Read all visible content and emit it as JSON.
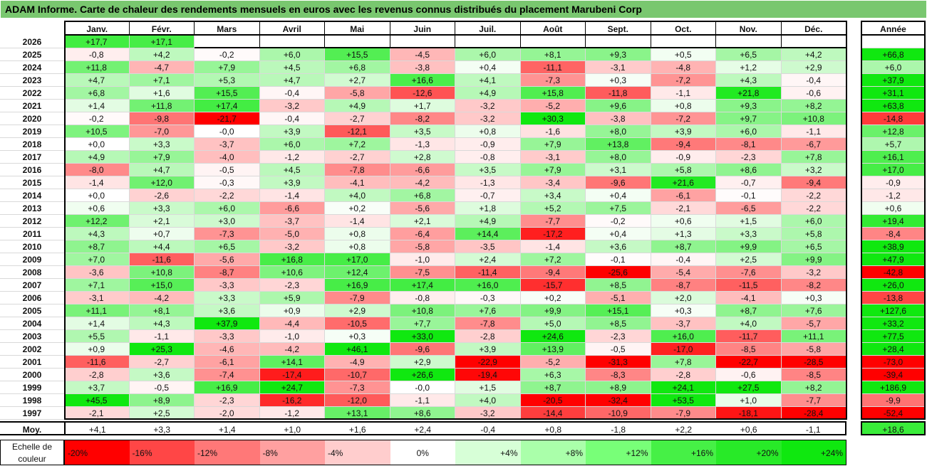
{
  "title": "ADAM Informe. Carte de chaleur des rendements mensuels en euros avec les revenus connus distribués du placement Marubeni Corp",
  "chart_data": {
    "type": "heatmap",
    "months": [
      "Janv.",
      "Févr.",
      "Mars",
      "Avril",
      "Mai",
      "Juin",
      "Juil.",
      "Août",
      "Sept.",
      "Oct.",
      "Nov.",
      "Déc."
    ],
    "year_label": "Année",
    "rows": [
      {
        "year": "2026",
        "values": [
          "+17,7",
          "+17,1",
          "",
          "",
          "",
          "",
          "",
          "",
          "",
          "",
          "",
          ""
        ],
        "annual": ""
      },
      {
        "year": "2025",
        "values": [
          "-0,8",
          "+4,2",
          "-0,2",
          "+6,0",
          "+15,5",
          "-4,5",
          "+6,0",
          "+8,1",
          "+9,3",
          "+0,5",
          "+6,5",
          "+4,2"
        ],
        "annual": "+66,8"
      },
      {
        "year": "2024",
        "values": [
          "+11,8",
          "-4,7",
          "+7,9",
          "+4,5",
          "+6,8",
          "-3,8",
          "+0,4",
          "-11,1",
          "-3,1",
          "-4,8",
          "+1,2",
          "+2,9"
        ],
        "annual": "+6,0"
      },
      {
        "year": "2023",
        "values": [
          "+4,7",
          "+7,1",
          "+5,3",
          "+4,7",
          "+2,7",
          "+16,6",
          "+4,1",
          "-7,3",
          "+0,3",
          "-7,2",
          "+4,3",
          "-0,4"
        ],
        "annual": "+37,9"
      },
      {
        "year": "2022",
        "values": [
          "+6,8",
          "+1,6",
          "+15,5",
          "-0,4",
          "-5,8",
          "-12,6",
          "+4,9",
          "+15,8",
          "-11,8",
          "-1,1",
          "+21,8",
          "-0,6"
        ],
        "annual": "+31,1"
      },
      {
        "year": "2021",
        "values": [
          "+1,4",
          "+11,8",
          "+17,4",
          "-3,2",
          "+4,9",
          "+1,7",
          "-3,2",
          "-5,2",
          "+9,6",
          "+0,8",
          "+9,3",
          "+8,2"
        ],
        "annual": "+63,8"
      },
      {
        "year": "2020",
        "values": [
          "-0,2",
          "-9,8",
          "-21,7",
          "-0,4",
          "-2,7",
          "-8,2",
          "-3,2",
          "+30,3",
          "-3,8",
          "-7,2",
          "+9,7",
          "+10,8"
        ],
        "annual": "-14,8"
      },
      {
        "year": "2019",
        "values": [
          "+10,5",
          "-7,0",
          "-0,0",
          "+3,9",
          "-12,1",
          "+3,5",
          "+0,8",
          "-1,6",
          "+8,0",
          "+3,9",
          "+6,0",
          "-1,1"
        ],
        "annual": "+12,8"
      },
      {
        "year": "2018",
        "values": [
          "+0,0",
          "+3,3",
          "-3,7",
          "+6,0",
          "+7,2",
          "-1,3",
          "-0,9",
          "+7,9",
          "+13,8",
          "-9,4",
          "-8,1",
          "-6,7"
        ],
        "annual": "+5,7"
      },
      {
        "year": "2017",
        "values": [
          "+4,9",
          "+7,9",
          "-4,0",
          "-1,2",
          "-2,7",
          "+2,8",
          "-0,8",
          "-3,1",
          "+8,0",
          "-0,9",
          "-2,3",
          "+7,8"
        ],
        "annual": "+16,1"
      },
      {
        "year": "2016",
        "values": [
          "-8,0",
          "+4,7",
          "-0,5",
          "+4,5",
          "-7,8",
          "-6,6",
          "+3,5",
          "+7,9",
          "+3,1",
          "+5,8",
          "+8,6",
          "+3,2"
        ],
        "annual": "+17,0"
      },
      {
        "year": "2015",
        "values": [
          "-1,4",
          "+12,0",
          "-0,3",
          "+3,9",
          "-4,1",
          "-4,2",
          "-1,3",
          "-3,4",
          "-9,6",
          "+21,6",
          "-0,7",
          "-9,4"
        ],
        "annual": "-0,9"
      },
      {
        "year": "2014",
        "values": [
          "+0,0",
          "-2,6",
          "-2,2",
          "-1,4",
          "+4,0",
          "+6,8",
          "-0,7",
          "+3,4",
          "+0,4",
          "-6,1",
          "-0,1",
          "-2,2"
        ],
        "annual": "-1,2"
      },
      {
        "year": "2013",
        "values": [
          "+0,6",
          "+3,3",
          "+6,0",
          "-6,6",
          "+0,2",
          "-5,6",
          "+1,8",
          "+5,2",
          "+7,5",
          "-2,1",
          "-6,5",
          "-2,2"
        ],
        "annual": "+0,6"
      },
      {
        "year": "2012",
        "values": [
          "+12,2",
          "+2,1",
          "+3,0",
          "-3,7",
          "-1,4",
          "+2,1",
          "+4,9",
          "-7,7",
          "-0,2",
          "+0,6",
          "+1,5",
          "+6,0"
        ],
        "annual": "+19,4"
      },
      {
        "year": "2011",
        "values": [
          "+4,3",
          "+0,7",
          "-7,3",
          "-5,0",
          "+0,8",
          "-6,4",
          "+14,4",
          "-17,2",
          "+0,4",
          "+1,3",
          "+3,3",
          "+5,8"
        ],
        "annual": "-8,4"
      },
      {
        "year": "2010",
        "values": [
          "+8,7",
          "+4,4",
          "+6,5",
          "-3,2",
          "+0,8",
          "-5,8",
          "-3,5",
          "-1,4",
          "+3,6",
          "+8,7",
          "+9,9",
          "+6,5"
        ],
        "annual": "+38,9"
      },
      {
        "year": "2009",
        "values": [
          "+7,0",
          "-11,6",
          "-5,6",
          "+16,8",
          "+17,0",
          "-1,0",
          "+2,4",
          "+7,2",
          "-0,1",
          "-0,4",
          "+2,5",
          "+9,9"
        ],
        "annual": "+47,9"
      },
      {
        "year": "2008",
        "values": [
          "-3,6",
          "+10,8",
          "-8,7",
          "+10,6",
          "+12,4",
          "-7,5",
          "-11,4",
          "-9,4",
          "-25,6",
          "-5,4",
          "-7,6",
          "-3,2"
        ],
        "annual": "-42,8"
      },
      {
        "year": "2007",
        "values": [
          "+7,1",
          "+15,0",
          "-3,3",
          "-2,3",
          "+16,9",
          "+17,4",
          "+16,0",
          "-15,7",
          "+8,5",
          "-8,7",
          "-11,5",
          "-8,2"
        ],
        "annual": "+26,0"
      },
      {
        "year": "2006",
        "values": [
          "-3,1",
          "-4,2",
          "+3,3",
          "+5,9",
          "-7,9",
          "-0,8",
          "-0,3",
          "+0,2",
          "-5,1",
          "+2,0",
          "-4,1",
          "+0,3"
        ],
        "annual": "-13,8"
      },
      {
        "year": "2005",
        "values": [
          "+11,1",
          "+8,1",
          "+3,6",
          "+0,9",
          "+2,9",
          "+10,8",
          "+7,6",
          "+9,9",
          "+15,1",
          "+0,3",
          "+8,7",
          "+7,6"
        ],
        "annual": "+127,6"
      },
      {
        "year": "2004",
        "values": [
          "+1,4",
          "+4,3",
          "+37,9",
          "-4,4",
          "-10,5",
          "+7,7",
          "-7,8",
          "+5,0",
          "+8,5",
          "-3,7",
          "+4,0",
          "-5,7"
        ],
        "annual": "+33,2"
      },
      {
        "year": "2003",
        "values": [
          "+5,5",
          "-1,1",
          "-3,3",
          "-1,0",
          "+0,3",
          "+33,0",
          "-2,8",
          "+24,6",
          "-2,3",
          "+16,0",
          "-11,7",
          "+11,1"
        ],
        "annual": "+77,5"
      },
      {
        "year": "2002",
        "values": [
          "+0,9",
          "+25,3",
          "-4,6",
          "-4,2",
          "+46,1",
          "-9,6",
          "+3,9",
          "+13,9",
          "-0,5",
          "-17,0",
          "-8,5",
          "-5,8"
        ],
        "annual": "+28,4"
      },
      {
        "year": "2001",
        "values": [
          "-11,6",
          "-2,7",
          "-6,1",
          "+14,1",
          "-4,9",
          "+2,9",
          "-22,9",
          "-5,2",
          "-31,3",
          "+7,8",
          "-22,7",
          "-28,5"
        ],
        "annual": "-73,0"
      },
      {
        "year": "2000",
        "values": [
          "-2,8",
          "+3,6",
          "-7,4",
          "-17,4",
          "-10,7",
          "+26,6",
          "-19,4",
          "+6,3",
          "-8,3",
          "-2,8",
          "-0,6",
          "-8,5"
        ],
        "annual": "-39,4"
      },
      {
        "year": "1999",
        "values": [
          "+3,7",
          "-0,5",
          "+16,9",
          "+24,7",
          "-7,3",
          "-0,0",
          "+1,5",
          "+8,7",
          "+8,9",
          "+24,1",
          "+27,5",
          "+8,2"
        ],
        "annual": "+186,9"
      },
      {
        "year": "1998",
        "values": [
          "+45,5",
          "+8,9",
          "-2,3",
          "-16,2",
          "-12,0",
          "-1,1",
          "+4,0",
          "-20,5",
          "-32,4",
          "+53,5",
          "+1,0",
          "-7,7"
        ],
        "annual": "-9,9"
      },
      {
        "year": "1997",
        "values": [
          "-2,1",
          "+2,5",
          "-2,0",
          "-1,2",
          "+13,1",
          "+8,6",
          "-3,2",
          "-14,4",
          "-10,9",
          "-7,9",
          "-18,1",
          "-28,4"
        ],
        "annual": "-52,4"
      }
    ],
    "average": {
      "label": "Moy.",
      "values": [
        "+4,1",
        "+3,3",
        "+1,4",
        "+1,0",
        "+1,6",
        "+2,4",
        "-0,4",
        "+0,8",
        "-1,8",
        "+2,2",
        "+0,6",
        "-1,1"
      ],
      "annual": "+18,6"
    },
    "scale": {
      "label_line1": "Echelle de",
      "label_line2": "couleur",
      "steps": [
        "-20%",
        "-16%",
        "-12%",
        "-8%",
        "-4%",
        "0%",
        "+4%",
        "+8%",
        "+12%",
        "+16%",
        "+20%",
        "+24%"
      ],
      "colors": [
        "#ff0000",
        "#ff4646",
        "#ff7878",
        "#ffa0a0",
        "#ffcdcd",
        "#ffffff",
        "#d7ffd7",
        "#aaffaa",
        "#78ff78",
        "#46f046",
        "#28ea28",
        "#0fe80f"
      ]
    }
  }
}
